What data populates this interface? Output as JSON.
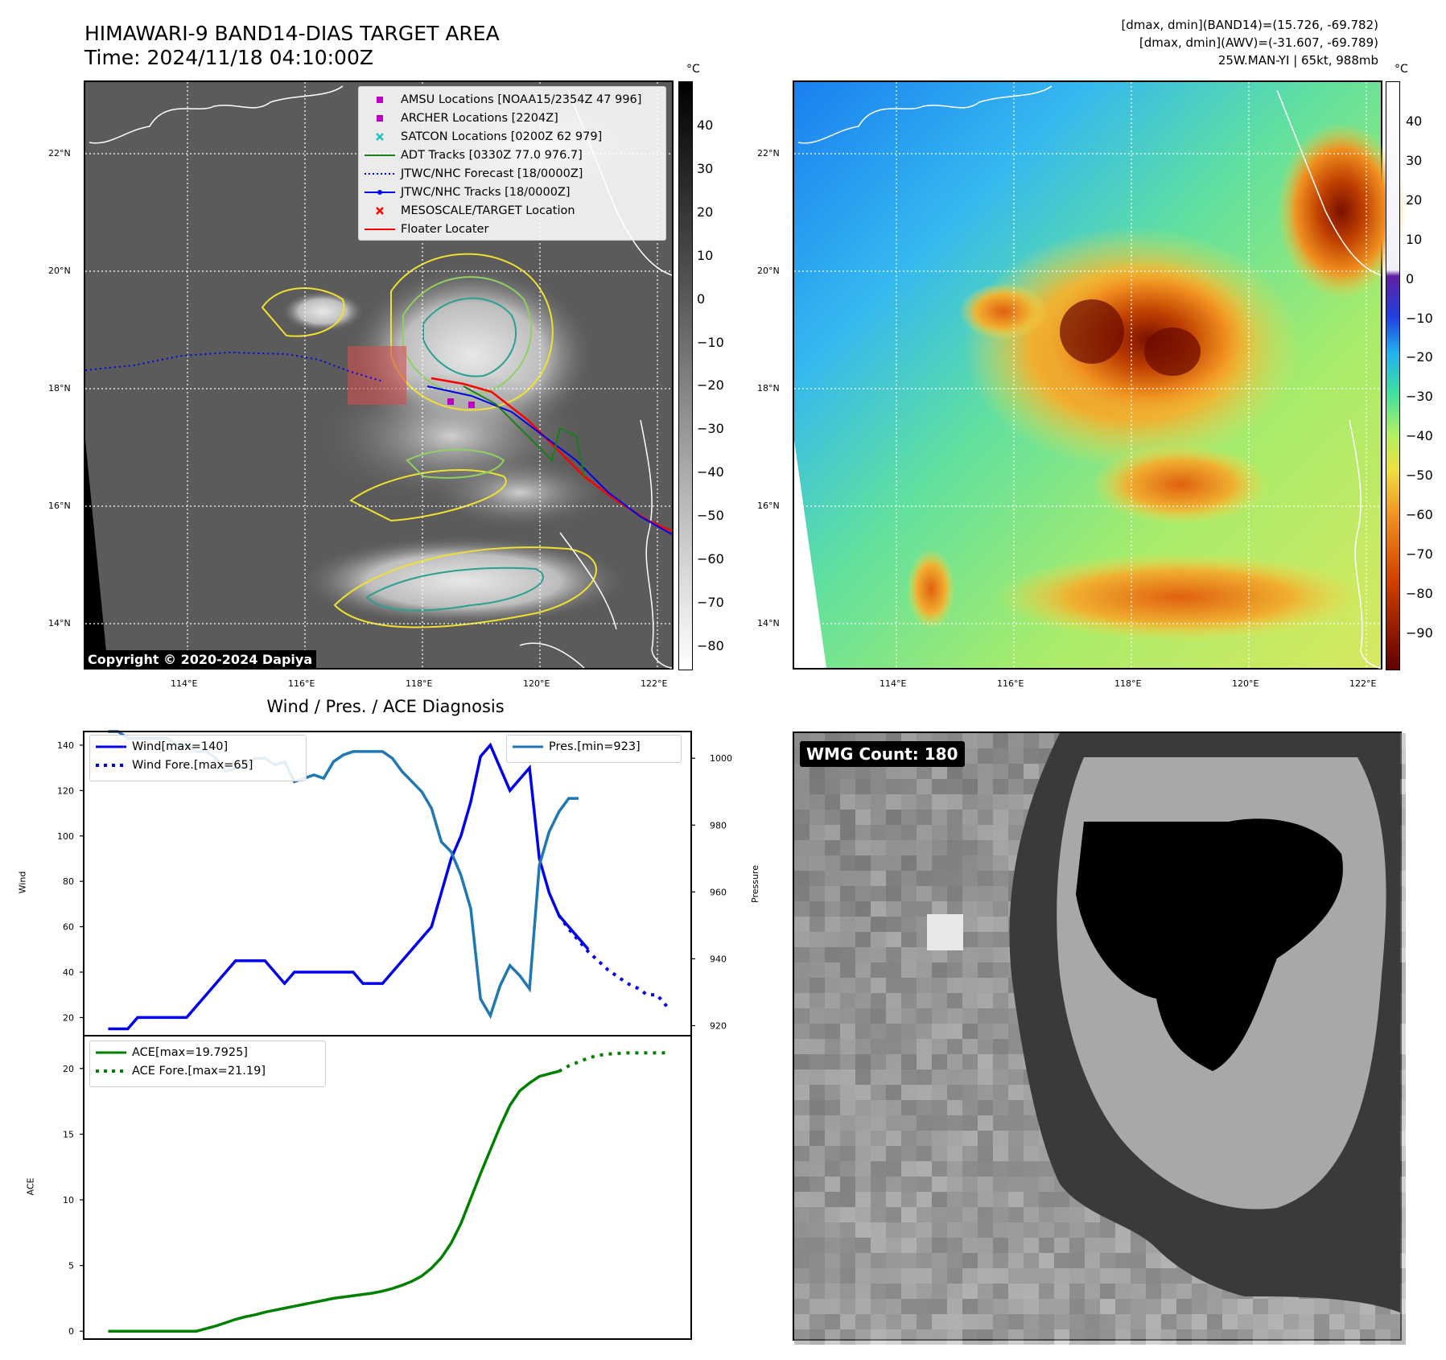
{
  "header": {
    "title_line1": "HIMAWARI-9 BAND14-DIAS TARGET AREA",
    "title_line2": "Time: 2024/11/18 04:10:00Z",
    "info_line1": "[dmax, dmin](BAND14)=(15.726, -69.782)",
    "info_line2": "[dmax, dmin](AWV)=(-31.607, -69.789)",
    "info_line3": "25W.MAN-YI | 65kt, 988mb"
  },
  "map": {
    "lat_labels": [
      "22°N",
      "20°N",
      "18°N",
      "16°N",
      "14°N"
    ],
    "lon_labels": [
      "114°E",
      "116°E",
      "118°E",
      "120°E",
      "122°E"
    ],
    "copyright": "Copyright © 2020-2024 Dapiya",
    "colorbar_unit": "°C",
    "legend": [
      {
        "label": "AMSU Locations [NOAA15/2354Z 47 996]",
        "symbol": "square",
        "color": "#c000c0"
      },
      {
        "label": "ARCHER Locations [2204Z]",
        "symbol": "square",
        "color": "#c000c0"
      },
      {
        "label": "SATCON Locations [0200Z 62 979]",
        "symbol": "x",
        "color": "#20c0c0"
      },
      {
        "label": "ADT Tracks [0330Z 77.0 976.7]",
        "symbol": "line",
        "color": "#1a7f1a"
      },
      {
        "label": "JTWC/NHC Forecast [18/0000Z]",
        "symbol": "dotted",
        "color": "#0000ee"
      },
      {
        "label": "JTWC/NHC Tracks [18/0000Z]",
        "symbol": "line-dot",
        "color": "#0000ee"
      },
      {
        "label": "MESOSCALE/TARGET Location",
        "symbol": "x",
        "color": "#ff0000"
      },
      {
        "label": "Floater Locater",
        "symbol": "line",
        "color": "#ff0000"
      }
    ],
    "colorbar_gray_labels": [
      "40",
      "30",
      "20",
      "10",
      "0",
      "−10",
      "−20",
      "−30",
      "−40",
      "−50",
      "−60",
      "−70",
      "−80"
    ],
    "colorbar_color_labels": [
      "40",
      "30",
      "20",
      "10",
      "0",
      "−10",
      "−20",
      "−30",
      "−40",
      "−50",
      "−60",
      "−70",
      "−80",
      "−90"
    ]
  },
  "chart_data": [
    {
      "type": "line",
      "title": "Wind / Pres. / ACE Diagnosis",
      "ylabel": "Wind",
      "ylabel_right": "Pressure",
      "ylim": [
        12,
        146
      ],
      "ylim_right": [
        917,
        1008
      ],
      "y_ticks": [
        20,
        40,
        60,
        80,
        100,
        120,
        140
      ],
      "y_ticks_right": [
        920,
        940,
        960,
        980,
        1000
      ],
      "x": [
        0,
        1,
        2,
        3,
        4,
        5,
        6,
        7,
        8,
        9,
        10,
        11,
        12,
        13,
        14,
        15,
        16,
        17,
        18,
        19,
        20,
        21,
        22,
        23,
        24,
        25,
        26,
        27,
        28,
        29,
        30,
        31,
        32,
        33,
        34,
        35,
        36,
        37,
        38,
        39,
        40,
        41,
        42,
        43,
        44,
        45,
        46,
        47,
        48,
        49,
        50,
        51,
        52,
        53,
        54,
        55,
        56,
        57,
        58,
        59,
        60
      ],
      "series": [
        {
          "name": "Wind[max=140]",
          "color": "#0000ee",
          "style": "solid",
          "x": [
            0,
            1,
            2,
            3,
            4,
            5,
            6,
            7,
            8,
            9,
            10,
            11,
            12,
            13,
            14,
            15,
            16,
            17,
            18,
            19,
            20,
            21,
            22,
            23,
            24,
            25,
            26,
            27,
            28,
            29,
            30,
            31,
            32,
            33,
            34,
            35,
            36,
            37,
            38,
            39,
            40,
            41,
            42,
            43,
            44,
            45,
            46,
            47,
            48,
            49
          ],
          "values": [
            15,
            15,
            15,
            20,
            20,
            20,
            20,
            20,
            20,
            25,
            30,
            35,
            40,
            45,
            45,
            45,
            45,
            40,
            35,
            40,
            40,
            40,
            40,
            40,
            40,
            40,
            35,
            35,
            35,
            40,
            45,
            50,
            55,
            60,
            75,
            90,
            100,
            115,
            135,
            140,
            130,
            120,
            125,
            130,
            90,
            75,
            65,
            60,
            55,
            50
          ]
        },
        {
          "name": "Wind Fore.[max=65]",
          "color": "#0000ee",
          "style": "dotted",
          "x": [
            46,
            47,
            48,
            49,
            50,
            51,
            52,
            53,
            54,
            55,
            56,
            57
          ],
          "values": [
            65,
            59,
            54,
            49,
            45,
            41,
            38,
            35,
            33,
            30,
            30,
            25
          ]
        },
        {
          "name": "Pres.[min=923]",
          "color": "#1f77b4",
          "style": "solid",
          "axis": "right",
          "x": [
            0,
            1,
            2,
            3,
            4,
            5,
            6,
            7,
            8,
            9,
            10,
            11,
            12,
            13,
            14,
            15,
            16,
            17,
            18,
            19,
            20,
            21,
            22,
            23,
            24,
            25,
            26,
            27,
            28,
            29,
            30,
            31,
            32,
            33,
            34,
            35,
            36,
            37,
            38,
            39,
            40,
            41,
            42,
            43,
            44,
            45,
            46,
            47,
            48
          ],
          "values": [
            1008,
            1008,
            1006,
            1006,
            1006,
            1006,
            1006,
            1004,
            1004,
            1002,
            1002,
            1000,
            996,
            997,
            998,
            1000,
            1000,
            998,
            999,
            993,
            994,
            995,
            994,
            999,
            1001,
            1002,
            1002,
            1002,
            1002,
            1000,
            996,
            993,
            990,
            985,
            975,
            972,
            965,
            955,
            928,
            923,
            932,
            938,
            935,
            931,
            968,
            978,
            984,
            988,
            988
          ]
        }
      ]
    },
    {
      "type": "line",
      "ylabel": "ACE",
      "ylim": [
        -0.6,
        22.5
      ],
      "y_ticks": [
        0,
        5,
        10,
        15,
        20
      ],
      "series": [
        {
          "name": "ACE[max=19.7925]",
          "color": "#008000",
          "style": "solid",
          "x": [
            0,
            1,
            2,
            3,
            4,
            5,
            6,
            7,
            8,
            9,
            10,
            11,
            12,
            13,
            14,
            15,
            16,
            17,
            18,
            19,
            20,
            21,
            22,
            23,
            24,
            25,
            26,
            27,
            28,
            29,
            30,
            31,
            32,
            33,
            34,
            35,
            36,
            37,
            38,
            39,
            40,
            41,
            42,
            43,
            44,
            45,
            46
          ],
          "values": [
            0,
            0,
            0,
            0,
            0,
            0,
            0,
            0,
            0,
            0,
            0.2,
            0.4,
            0.65,
            0.9,
            1.1,
            1.25,
            1.45,
            1.6,
            1.75,
            1.9,
            2.05,
            2.2,
            2.35,
            2.5,
            2.6,
            2.7,
            2.8,
            2.9,
            3.05,
            3.25,
            3.5,
            3.8,
            4.2,
            4.8,
            5.6,
            6.7,
            8.2,
            10.1,
            12,
            13.8,
            15.6,
            17.2,
            18.3,
            18.9,
            19.4,
            19.6,
            19.79
          ]
        },
        {
          "name": "ACE Fore.[max=21.19]",
          "color": "#008000",
          "style": "dotted",
          "x": [
            46,
            47,
            48,
            49,
            50,
            51,
            52,
            53,
            54,
            55,
            56,
            57
          ],
          "values": [
            19.79,
            20.2,
            20.5,
            20.8,
            21.0,
            21.1,
            21.15,
            21.19,
            21.19,
            21.19,
            21.19,
            21.19
          ]
        }
      ]
    }
  ],
  "wmg": {
    "count_label": "WMG Count: 180"
  }
}
